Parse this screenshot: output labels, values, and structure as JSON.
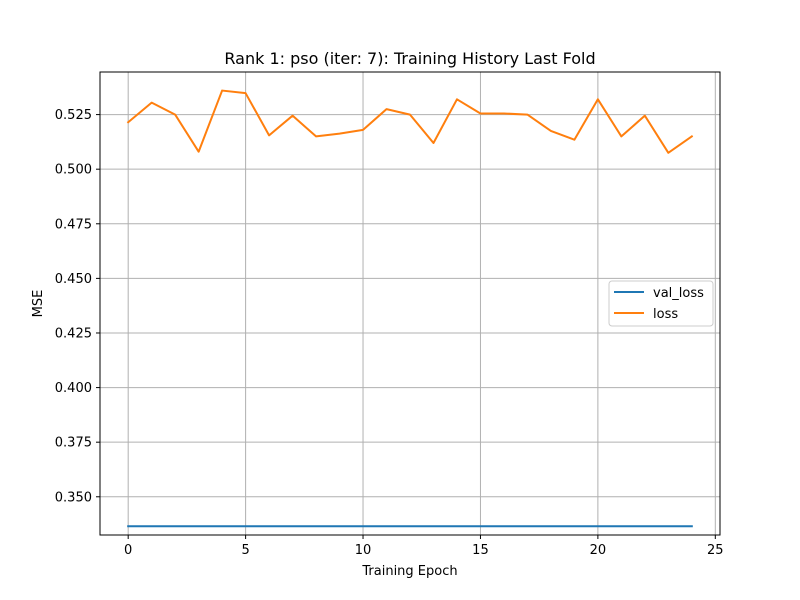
{
  "chart_data": {
    "type": "line",
    "title": "Rank 1: pso (iter: 7): Training History Last Fold",
    "xlabel": "Training Epoch",
    "ylabel": "MSE",
    "xlim": [
      -1.2,
      25.2
    ],
    "ylim": [
      0.3325,
      0.5445
    ],
    "xticks": [
      0,
      5,
      10,
      15,
      20,
      25
    ],
    "xtick_labels": [
      "0",
      "5",
      "10",
      "15",
      "20",
      "25"
    ],
    "yticks": [
      0.35,
      0.375,
      0.4,
      0.425,
      0.45,
      0.475,
      0.5,
      0.525
    ],
    "ytick_labels": [
      "0.350",
      "0.375",
      "0.400",
      "0.425",
      "0.450",
      "0.475",
      "0.500",
      "0.525"
    ],
    "grid": true,
    "legend_position": "center-right",
    "x": [
      0,
      1,
      2,
      3,
      4,
      5,
      6,
      7,
      8,
      9,
      10,
      11,
      12,
      13,
      14,
      15,
      16,
      17,
      18,
      19,
      20,
      21,
      22,
      23,
      24
    ],
    "series": [
      {
        "name": "val_loss",
        "color": "#1f77b4",
        "values": [
          0.3365,
          0.3365,
          0.3365,
          0.3365,
          0.3365,
          0.3365,
          0.3365,
          0.3365,
          0.3365,
          0.3365,
          0.3365,
          0.3365,
          0.3365,
          0.3365,
          0.3365,
          0.3365,
          0.3365,
          0.3365,
          0.3365,
          0.3365,
          0.3365,
          0.3365,
          0.3365,
          0.3365,
          0.3365
        ]
      },
      {
        "name": "loss",
        "color": "#ff7f0e",
        "values": [
          0.5215,
          0.5305,
          0.525,
          0.508,
          0.536,
          0.5348,
          0.5155,
          0.5245,
          0.515,
          0.5163,
          0.518,
          0.5275,
          0.525,
          0.512,
          0.532,
          0.5255,
          0.5255,
          0.525,
          0.5175,
          0.5135,
          0.532,
          0.515,
          0.5245,
          0.5075,
          0.515
        ]
      }
    ]
  }
}
